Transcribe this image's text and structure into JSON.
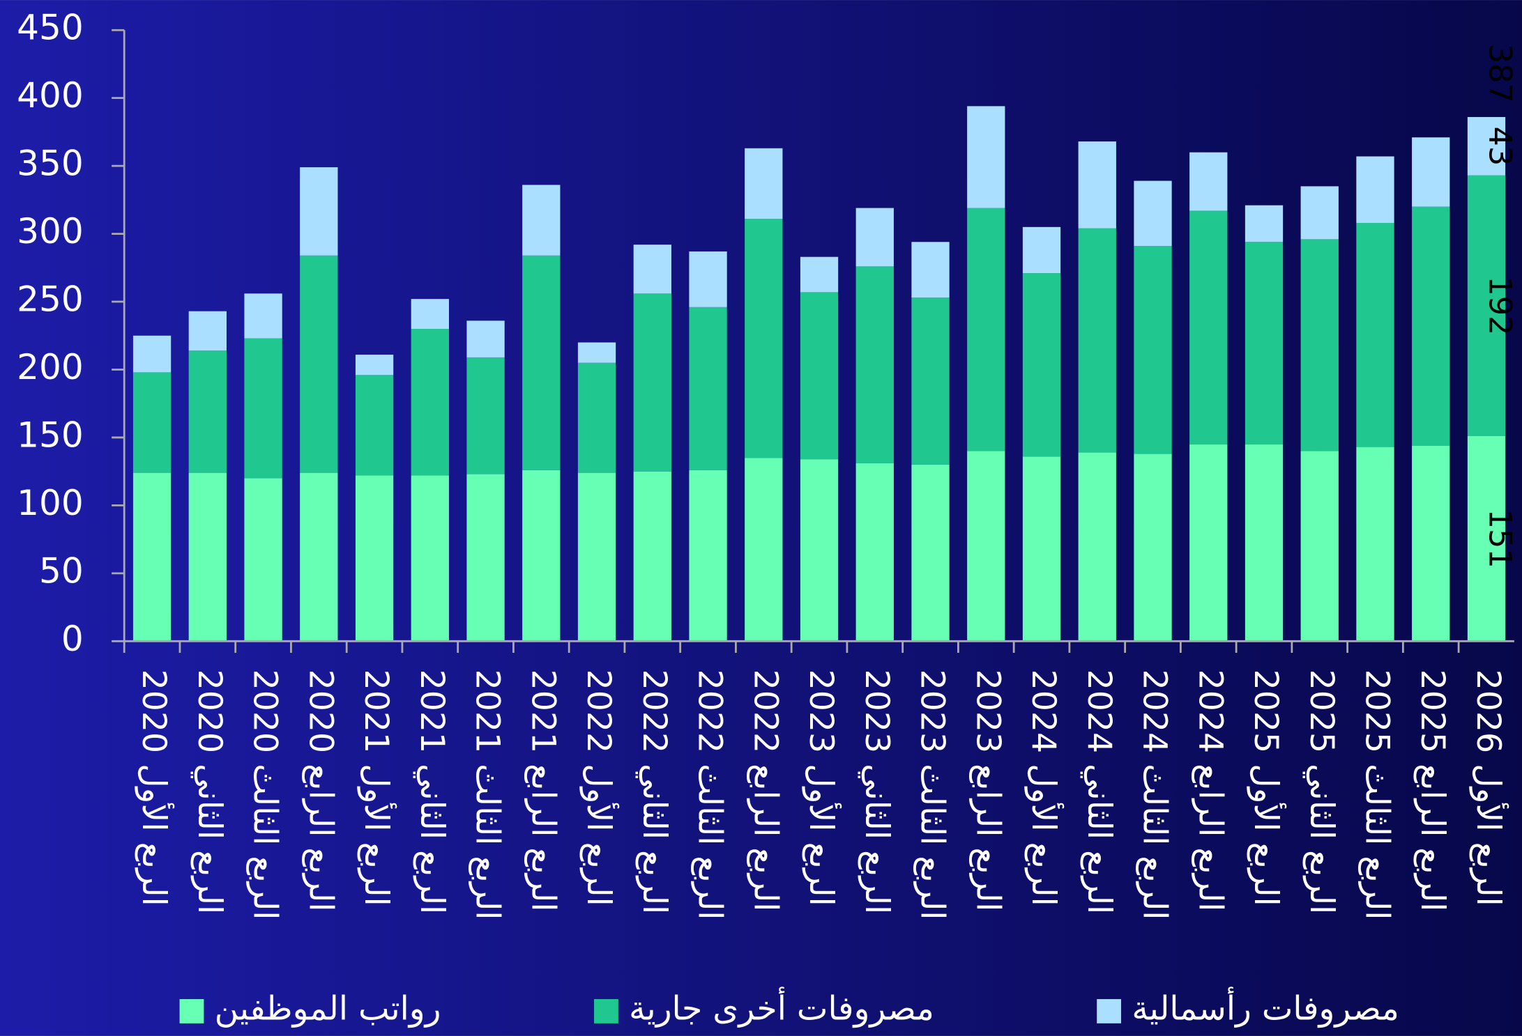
{
  "chart_data": {
    "type": "stacked_bar",
    "categories": [
      "الربع الأول 2020",
      "الربع الثاني 2020",
      "الربع الثالث 2020",
      "الربع الرابع 2020",
      "الربع الأول 2021",
      "الربع الثاني 2021",
      "الربع الثالث 2021",
      "الربع الرابع 2021",
      "الربع الأول 2022",
      "الربع الثاني 2022",
      "الربع الثالث 2022",
      "الربع الرابع 2022",
      "الربع الأول 2023",
      "الربع الثاني 2023",
      "الربع الثالث 2023",
      "الربع الرابع 2023",
      "الربع الأول 2024",
      "الربع الثاني 2024",
      "الربع الثالث 2024",
      "الربع الرابع 2024",
      "الربع الأول 2025",
      "الربع الثاني 2025",
      "الربع الثالث 2025",
      "الربع الرابع 2025",
      "الربع الأول 2026"
    ],
    "series": [
      {
        "name": "رواتب الموظفين",
        "color": "#66ffb3",
        "values": [
          124,
          124,
          120,
          124,
          122,
          122,
          123,
          126,
          124,
          125,
          126,
          135,
          134,
          131,
          130,
          140,
          136,
          139,
          138,
          145,
          145,
          140,
          143,
          144,
          151
        ]
      },
      {
        "name": "مصروفات أخرى جارية",
        "color": "#20c890",
        "values": [
          74,
          90,
          103,
          160,
          74,
          108,
          86,
          158,
          81,
          131,
          120,
          176,
          123,
          145,
          123,
          179,
          135,
          165,
          153,
          172,
          149,
          156,
          165,
          176,
          192
        ]
      },
      {
        "name": "مصروفات رأسمالية",
        "color": "#aadfff",
        "values": [
          27,
          29,
          33,
          65,
          15,
          22,
          27,
          52,
          15,
          36,
          41,
          52,
          26,
          43,
          41,
          75,
          34,
          64,
          48,
          43,
          27,
          39,
          49,
          51,
          43
        ]
      }
    ],
    "total_label": 387,
    "ylim": [
      0,
      450
    ],
    "yticks": [
      0,
      50,
      100,
      150,
      200,
      250,
      300,
      350,
      400,
      450
    ]
  }
}
